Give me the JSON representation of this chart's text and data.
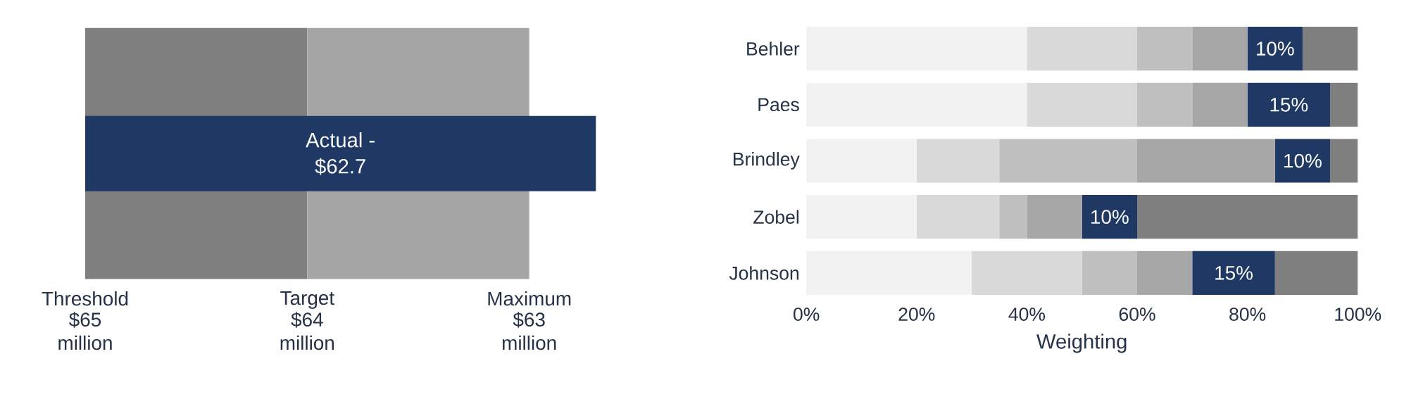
{
  "chart_data": [
    {
      "type": "bar",
      "orientation": "horizontal",
      "categories": [
        null
      ],
      "base": [
        65
      ],
      "values": [
        -2.3
      ],
      "color": "#1f3864",
      "xlim": [
        65,
        62.7
      ],
      "xticks": [
        {
          "value": 65,
          "label": "$65 million"
        },
        {
          "value": 64,
          "label": "$64 million"
        },
        {
          "value": 63,
          "label": "$63 million"
        }
      ],
      "annotations": [
        "Actual - $62.7",
        "Threshold",
        "Target",
        "Maximum"
      ],
      "bands": [
        {
          "axis": "x",
          "from": 65,
          "to": 64,
          "color": "#7f7f7f"
        },
        {
          "axis": "x",
          "from": 64,
          "to": 63,
          "color": "#a5a5a5"
        }
      ]
    },
    {
      "type": "bar",
      "orientation": "horizontal",
      "stacked": true,
      "xlabel": "Weighting",
      "categories": [
        "Behler",
        "Paes",
        "Brindley",
        "Zobel",
        "Johnson"
      ],
      "series": [
        {
          "color": "#f2f2f2",
          "values": [
            40,
            40,
            20,
            20,
            30
          ]
        },
        {
          "color": "#d9d9d9",
          "values": [
            20,
            20,
            15,
            15,
            20
          ]
        },
        {
          "color": "#bfbfbf",
          "values": [
            10,
            10,
            25,
            5,
            10
          ]
        },
        {
          "color": "#a6a6a6",
          "values": [
            10,
            10,
            25,
            10,
            10
          ]
        },
        {
          "color": "#1f3864",
          "values": [
            10,
            15,
            10,
            10,
            15
          ],
          "value_labels": [
            "10%",
            "15%",
            "10%",
            "10%",
            "15%"
          ]
        },
        {
          "color": "#7f7f7f",
          "values": [
            10,
            5,
            5,
            40,
            15
          ]
        }
      ],
      "xlim": [
        0,
        100
      ],
      "xticks": [
        {
          "value": 0,
          "label": "0%"
        },
        {
          "value": 20,
          "label": "20%"
        },
        {
          "value": 40,
          "label": "40%"
        },
        {
          "value": 60,
          "label": "60%"
        },
        {
          "value": 80,
          "label": "80%"
        },
        {
          "value": 100,
          "label": "100%"
        }
      ]
    }
  ]
}
